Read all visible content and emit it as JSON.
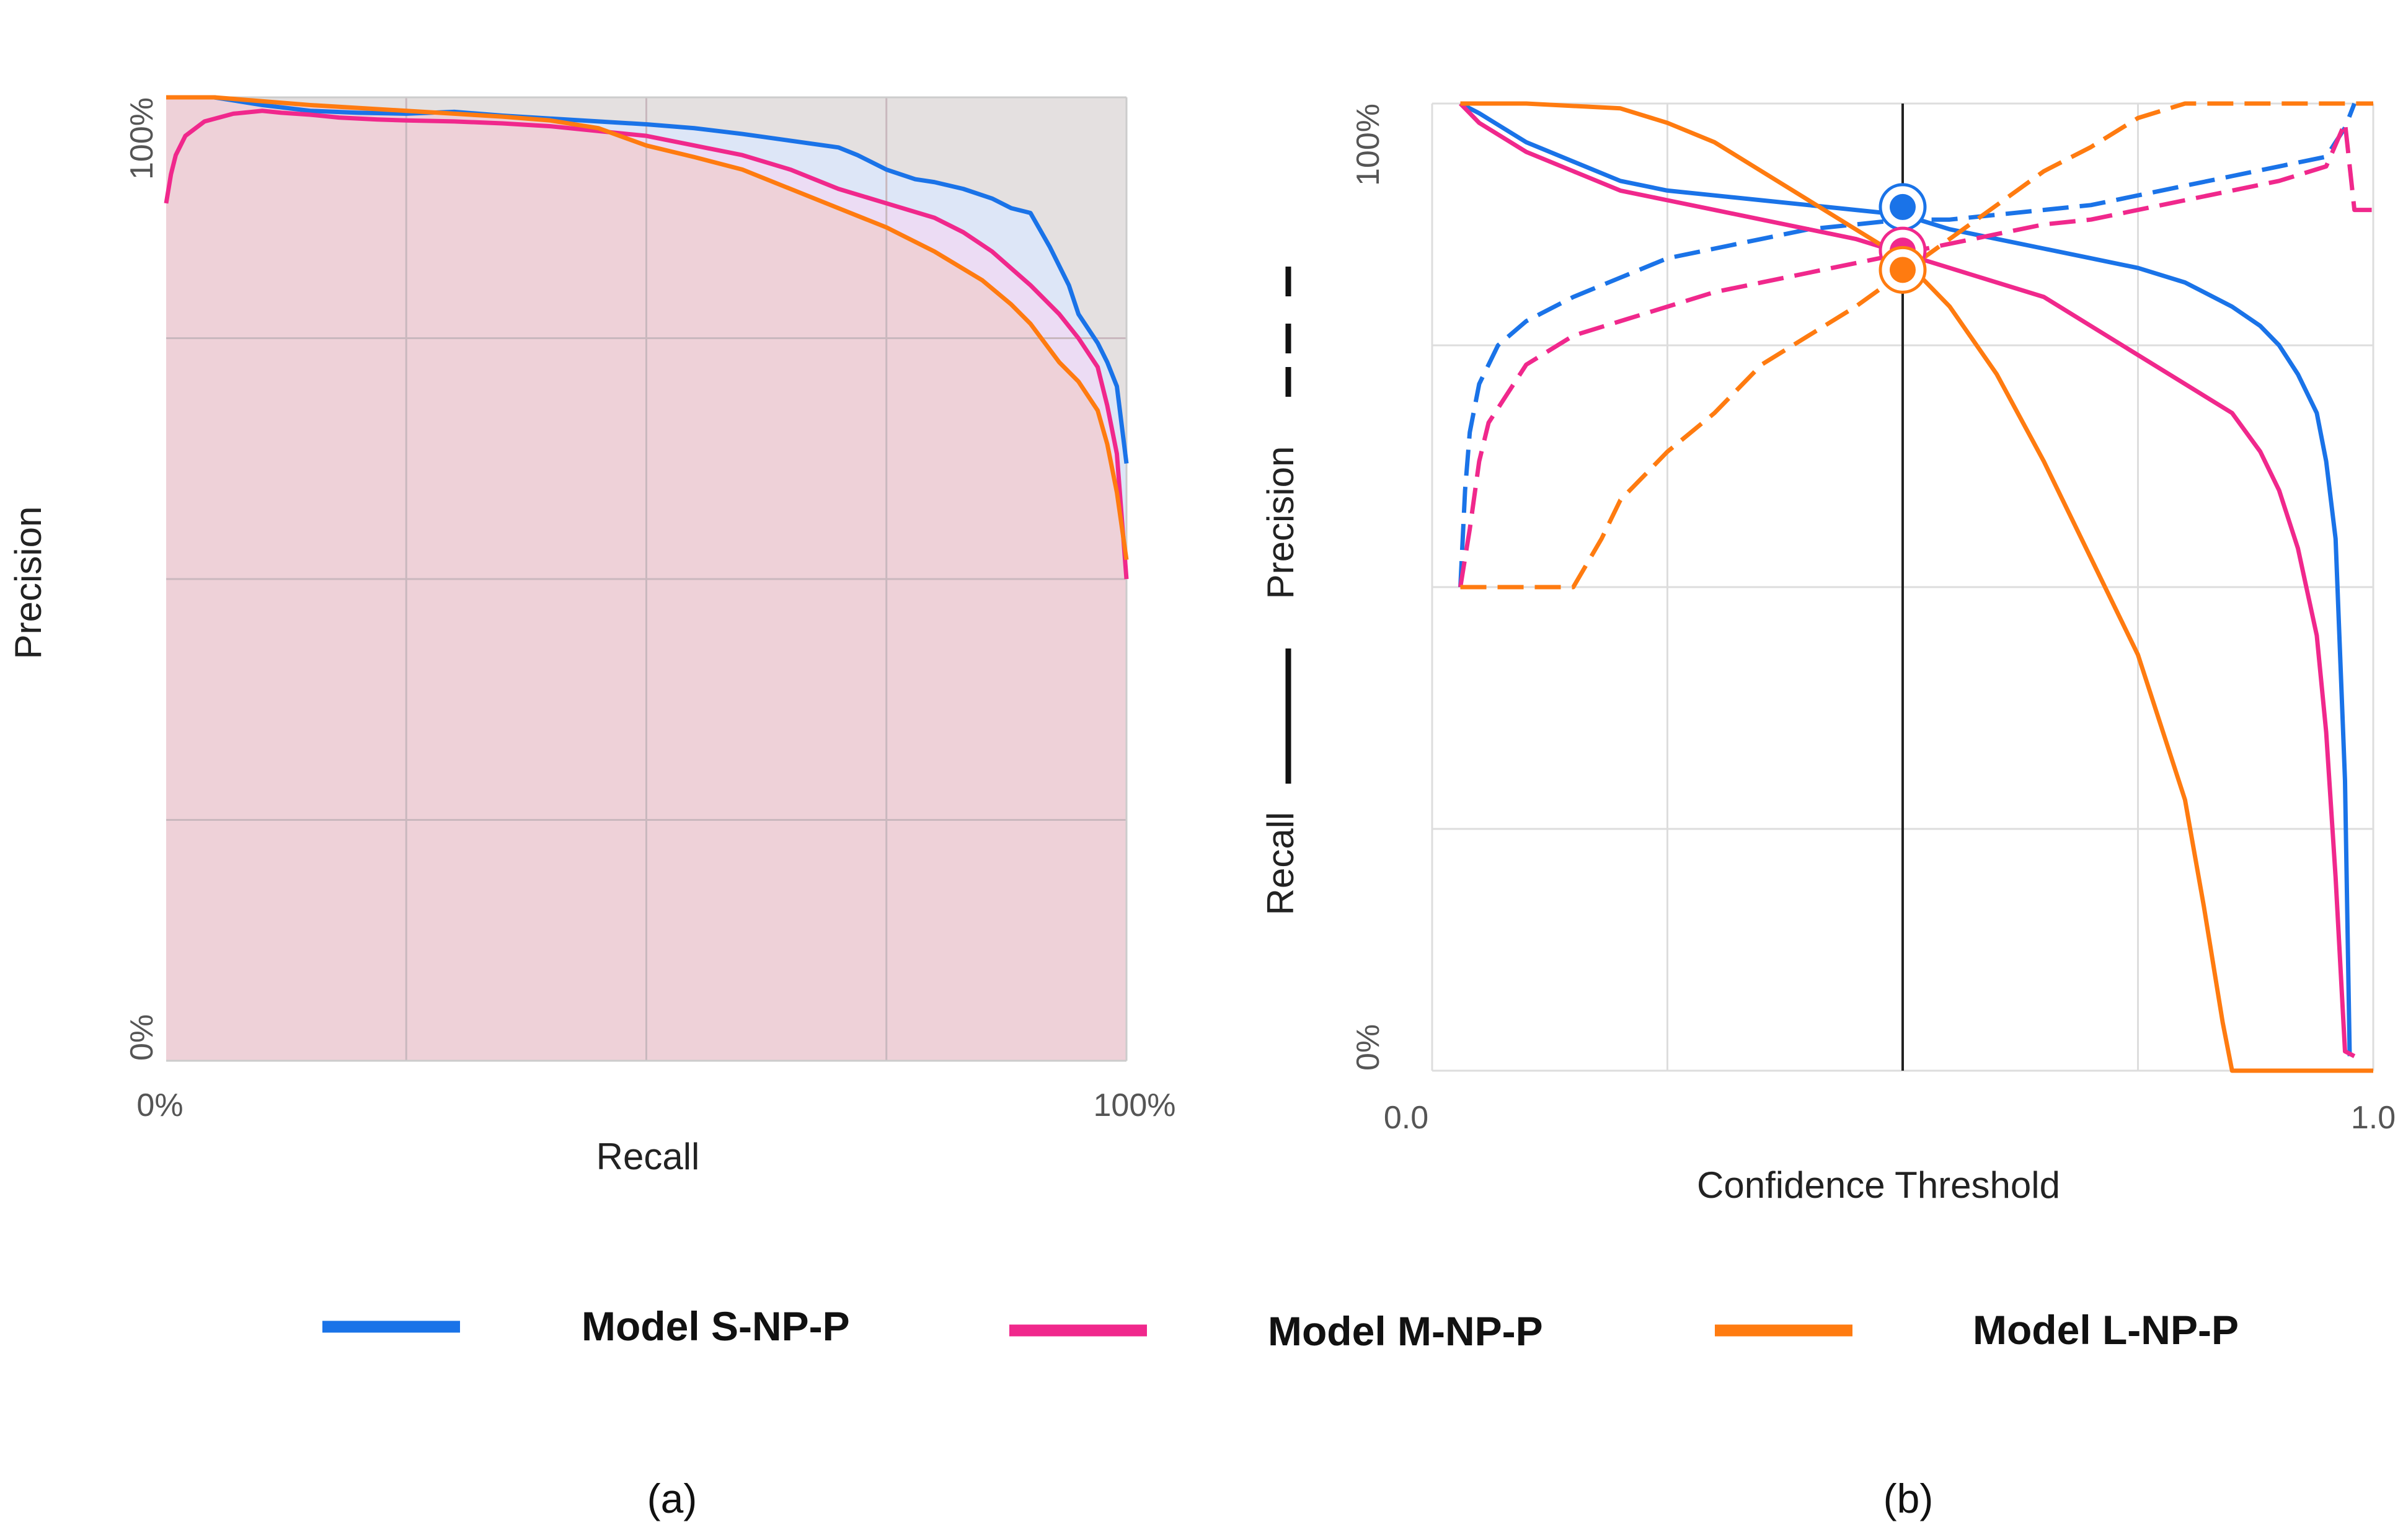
{
  "chart_data": [
    {
      "panel": "a",
      "type": "area",
      "title": "",
      "xlabel": "Recall",
      "ylabel": "Precision",
      "xlim": [
        0,
        100
      ],
      "ylim": [
        0,
        100
      ],
      "x_tick_labels": [
        "0%",
        "100%"
      ],
      "y_tick_labels": [
        "0%",
        "100%"
      ],
      "panel_label": "(a)",
      "series": [
        {
          "name": "Model S-NP-P",
          "color": "#1a73e8",
          "x": [
            0,
            5,
            10,
            15,
            20,
            25,
            30,
            35,
            40,
            45,
            50,
            55,
            60,
            65,
            70,
            72,
            75,
            78,
            80,
            83,
            86,
            88,
            90,
            92,
            94,
            95,
            97,
            98,
            99,
            100
          ],
          "y": [
            100,
            100,
            99.2,
            98.6,
            98.4,
            98.3,
            98.5,
            98.1,
            97.8,
            97.5,
            97.2,
            96.8,
            96.2,
            95.5,
            94.8,
            94.0,
            92.5,
            91.5,
            91.2,
            90.5,
            89.5,
            88.5,
            88.0,
            84.5,
            80.5,
            77.5,
            74.5,
            72.5,
            70.0,
            62.0
          ]
        },
        {
          "name": "Model M-NP-P",
          "color": "#f0288c",
          "x": [
            0,
            0.5,
            1,
            2,
            4,
            7,
            10,
            12,
            15,
            18,
            22,
            25,
            30,
            35,
            40,
            45,
            50,
            55,
            60,
            65,
            70,
            75,
            80,
            83,
            86,
            90,
            93,
            95,
            97,
            98,
            99,
            100
          ],
          "y": [
            89,
            92,
            94,
            96,
            97.5,
            98.3,
            98.6,
            98.4,
            98.2,
            97.9,
            97.7,
            97.6,
            97.5,
            97.3,
            97.0,
            96.5,
            96.0,
            95.0,
            94.0,
            92.5,
            90.5,
            89.0,
            87.5,
            86.0,
            84.0,
            80.5,
            77.5,
            75.0,
            72.0,
            68.0,
            63.0,
            50.0
          ]
        },
        {
          "name": "Model L-NP-P",
          "color": "#ff7b10",
          "x": [
            0,
            5,
            10,
            15,
            20,
            25,
            30,
            35,
            40,
            45,
            50,
            55,
            60,
            65,
            70,
            75,
            80,
            85,
            88,
            90,
            93,
            95,
            97,
            98,
            99,
            100
          ],
          "y": [
            100,
            100,
            99.6,
            99.2,
            98.9,
            98.6,
            98.3,
            98.0,
            97.6,
            96.8,
            95.0,
            93.8,
            92.5,
            90.5,
            88.5,
            86.5,
            84.0,
            81.0,
            78.5,
            76.5,
            72.5,
            70.5,
            67.5,
            64.0,
            59.0,
            52.0
          ]
        }
      ]
    },
    {
      "panel": "b",
      "type": "line",
      "title": "",
      "xlabel": "Confidence Threshold",
      "ylabel_left": "Recall",
      "ylabel_right": "Precision",
      "xlim": [
        0,
        1
      ],
      "ylim": [
        0,
        100
      ],
      "x_tick_labels": [
        "0.0",
        "1.0"
      ],
      "y_tick_labels": [
        "0%",
        "100%"
      ],
      "threshold_marker": 0.5,
      "panel_label": "(b)",
      "series": [
        {
          "name": "Model S-NP-P",
          "color": "#1a73e8",
          "recall": {
            "x": [
              0.03,
              0.05,
              0.1,
              0.15,
              0.2,
              0.25,
              0.3,
              0.35,
              0.4,
              0.45,
              0.5,
              0.55,
              0.6,
              0.65,
              0.7,
              0.75,
              0.8,
              0.85,
              0.88,
              0.9,
              0.92,
              0.94,
              0.95,
              0.96,
              0.97,
              0.975
            ],
            "y": [
              100,
              99,
              96,
              94,
              92,
              91,
              90.5,
              90,
              89.5,
              89,
              88.5,
              87,
              86,
              85,
              84,
              83,
              81.5,
              79,
              77,
              75,
              72,
              68,
              63,
              55,
              30,
              1.5
            ]
          },
          "precision": {
            "x": [
              0.03,
              0.035,
              0.04,
              0.05,
              0.07,
              0.1,
              0.15,
              0.2,
              0.25,
              0.3,
              0.35,
              0.4,
              0.45,
              0.5,
              0.55,
              0.6,
              0.65,
              0.7,
              0.75,
              0.8,
              0.85,
              0.9,
              0.95,
              0.97,
              0.98
            ],
            "y": [
              50,
              60,
              66,
              71,
              75,
              77.5,
              80,
              82,
              84,
              85,
              86,
              87,
              87.5,
              88,
              88,
              88.5,
              89,
              89.5,
              90.5,
              91.5,
              92.5,
              93.5,
              94.5,
              97.5,
              100
            ]
          },
          "marker": 89.3
        },
        {
          "name": "Model M-NP-P",
          "color": "#f0288c",
          "recall": {
            "x": [
              0.03,
              0.05,
              0.1,
              0.15,
              0.2,
              0.25,
              0.3,
              0.35,
              0.4,
              0.45,
              0.5,
              0.55,
              0.6,
              0.65,
              0.7,
              0.75,
              0.8,
              0.85,
              0.88,
              0.9,
              0.92,
              0.94,
              0.95,
              0.96,
              0.97,
              0.98
            ],
            "y": [
              100,
              98,
              95,
              93,
              91,
              90,
              89,
              88,
              87,
              86,
              84.5,
              83,
              81.5,
              80,
              77,
              74,
              71,
              68,
              64,
              60,
              54,
              45,
              35,
              20,
              2,
              1.5
            ]
          },
          "precision": {
            "x": [
              0.03,
              0.04,
              0.05,
              0.06,
              0.08,
              0.1,
              0.15,
              0.2,
              0.25,
              0.3,
              0.35,
              0.4,
              0.45,
              0.5,
              0.55,
              0.6,
              0.65,
              0.7,
              0.75,
              0.8,
              0.85,
              0.9,
              0.95,
              0.97,
              0.98,
              1.0
            ],
            "y": [
              50,
              56,
              63,
              67,
              70,
              73,
              76,
              77.5,
              79,
              80.5,
              81.5,
              82.5,
              83.5,
              84.5,
              85.5,
              86.5,
              87.5,
              88,
              89,
              90,
              91,
              92,
              93.5,
              98,
              89,
              89
            ]
          },
          "marker": 84.8
        },
        {
          "name": "Model L-NP-P",
          "color": "#ff7b10",
          "recall": {
            "x": [
              0.03,
              0.1,
              0.2,
              0.25,
              0.3,
              0.35,
              0.4,
              0.45,
              0.5,
              0.55,
              0.6,
              0.65,
              0.7,
              0.75,
              0.8,
              0.82,
              0.84,
              0.85,
              0.9,
              0.95,
              1.0
            ],
            "y": [
              100,
              100,
              99.5,
              98,
              96,
              93,
              90,
              87,
              84,
              79,
              72,
              63,
              53,
              43,
              28,
              17,
              5,
              0,
              0,
              0,
              0
            ]
          },
          "precision": {
            "x": [
              0.03,
              0.1,
              0.15,
              0.18,
              0.2,
              0.25,
              0.3,
              0.35,
              0.4,
              0.45,
              0.5,
              0.55,
              0.6,
              0.65,
              0.7,
              0.75,
              0.8,
              0.85,
              0.9,
              0.95,
              1.0
            ],
            "y": [
              50,
              50,
              50,
              55,
              59,
              64,
              68,
              73,
              76,
              79,
              82.5,
              86,
              89.5,
              93,
              95.5,
              98.5,
              100,
              100,
              100,
              100,
              100
            ]
          },
          "marker": 82.8
        }
      ]
    }
  ],
  "legend": [
    {
      "name": "Model S-NP-P",
      "color": "#1a73e8"
    },
    {
      "name": "Model M-NP-P",
      "color": "#f0288c"
    },
    {
      "name": "Model L-NP-P",
      "color": "#ff7b10"
    }
  ]
}
